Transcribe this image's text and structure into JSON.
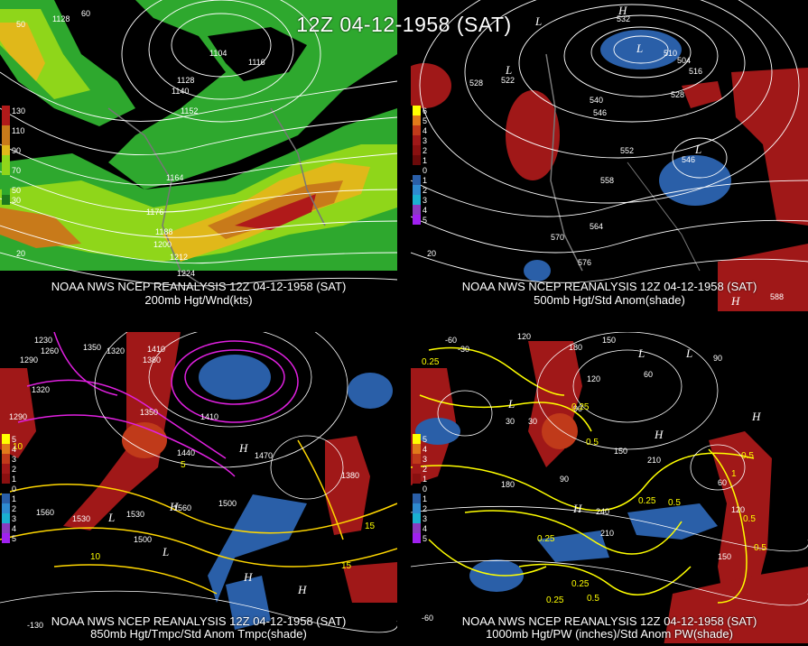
{
  "header": {
    "title": "12Z 04-12-1958 (SAT)"
  },
  "panels": [
    {
      "id": "p1",
      "caption_line1": "NOAA NWS NCEP REANALYSIS 12Z 04-12-1958 (SAT)",
      "caption_line2": "200mb Hgt/Wnd(kts)",
      "colorbar": [
        "130",
        "110",
        "90",
        "70",
        "50",
        "30"
      ],
      "colorbar_colors": [
        "#b01a1a",
        "#c87a1a",
        "#e0b81a",
        "#8fd61a",
        "#2ea82e",
        "#1d7a1d"
      ],
      "contour_labels": [
        "1128",
        "1104",
        "1116",
        "1128",
        "1140",
        "1152",
        "1164",
        "1176",
        "1188",
        "1200",
        "1212",
        "1224"
      ],
      "lat_labels": [
        "50",
        "60",
        "20"
      ]
    },
    {
      "id": "p2",
      "caption_line1": "NOAA NWS NCEP REANALYSIS 12Z 04-12-1958 (SAT)",
      "caption_line2": "500mb Hgt/Std Anom(shade)",
      "colorbar": [
        "6",
        "5",
        "4",
        "3",
        "2",
        "1",
        "0",
        "1",
        "2",
        "3",
        "4",
        "5"
      ],
      "colorbar_colors": [
        "#ffff00",
        "#e07a1a",
        "#c03a1a",
        "#a01818",
        "#8a1010",
        "#6b0a0a",
        "#000000",
        "#2a5fa8",
        "#2e8ad0",
        "#1ab0d0",
        "#8a3ac0",
        "#a020f0"
      ],
      "contour_labels": [
        "528",
        "522",
        "540",
        "546",
        "552",
        "558",
        "564",
        "570",
        "576",
        "516",
        "510",
        "504",
        "528",
        "546",
        "588",
        "532"
      ],
      "lat_labels": [
        "20"
      ]
    },
    {
      "id": "p3",
      "caption_line1": "NOAA NWS NCEP REANALYSIS 12Z 04-12-1958 (SAT)",
      "caption_line2": "850mb Hgt/Tmpc/Std Anom Tmpc(shade)",
      "colorbar": [
        "5",
        "4",
        "3",
        "2",
        "1",
        "0",
        "1",
        "2",
        "3",
        "4",
        "5"
      ],
      "colorbar_colors": [
        "#ffff00",
        "#e07a1a",
        "#c03a1a",
        "#a01818",
        "#8a1010",
        "#000000",
        "#2a5fa8",
        "#2e8ad0",
        "#1ab0d0",
        "#8a3ac0",
        "#a020f0"
      ],
      "contour_labels": [
        "1350",
        "1230",
        "1260",
        "1290",
        "1320",
        "1410",
        "1380",
        "1320",
        "1290",
        "1350",
        "1440",
        "1470",
        "1500",
        "1530",
        "1560",
        "1560",
        "1500",
        "1530",
        "1410",
        "1380"
      ],
      "temp_labels": [
        "10",
        "15",
        "15",
        "10",
        "5",
        "-5",
        "-10",
        "15",
        "-5",
        "-10"
      ],
      "lat_labels": [
        "-130"
      ]
    },
    {
      "id": "p4",
      "caption_line1": "NOAA NWS NCEP REANALYSIS 12Z 04-12-1958 (SAT)",
      "caption_line2": "1000mb Hgt/PW (inches)/Std Anom PW(shade)",
      "colorbar": [
        "5",
        "4",
        "3",
        "2",
        "1",
        "0",
        "1",
        "2",
        "3",
        "4",
        "5"
      ],
      "colorbar_colors": [
        "#ffff00",
        "#e07a1a",
        "#c03a1a",
        "#a01818",
        "#8a1010",
        "#000000",
        "#2a5fa8",
        "#2e8ad0",
        "#1ab0d0",
        "#8a3ac0",
        "#a020f0"
      ],
      "contour_labels": [
        "-60",
        "-30",
        "120",
        "180",
        "150",
        "60",
        "90",
        "120",
        "90",
        "150",
        "210",
        "180",
        "240",
        "210",
        "90",
        "150",
        "120",
        "60",
        "30",
        "30"
      ],
      "pw_labels": [
        "0.25",
        "0.25",
        "0.5",
        "0.25",
        "0.5",
        "0.25",
        "0.5",
        "0.5",
        "0.25",
        "0.5",
        "1",
        "0.5",
        "0.25"
      ],
      "lat_labels": [
        "-60"
      ]
    }
  ],
  "pressure_symbols": [
    "L",
    "L",
    "L",
    "L",
    "L",
    "H",
    "H",
    "H",
    "H",
    "H",
    "L",
    "L",
    "L"
  ]
}
